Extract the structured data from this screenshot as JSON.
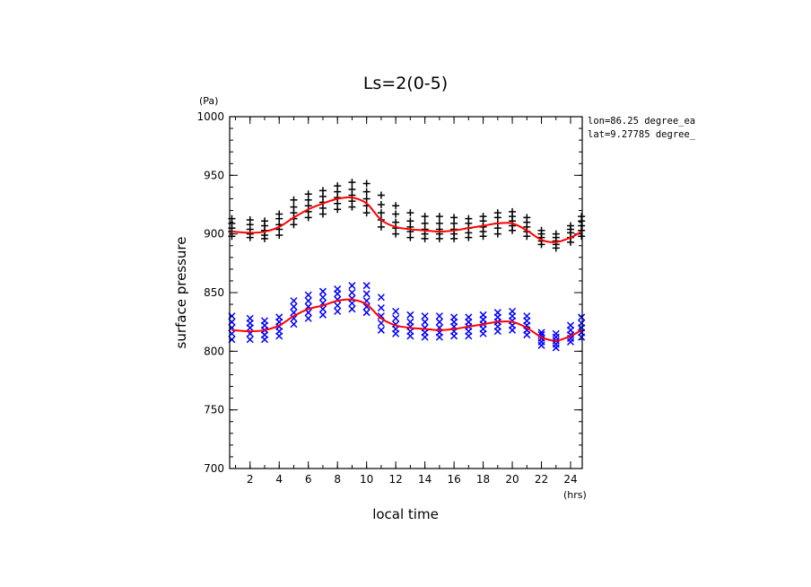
{
  "chart_data": {
    "type": "scatter",
    "title": "Ls=2(0-5)",
    "xlabel": "local time",
    "ylabel": "surface pressure",
    "x_unit": "(hrs)",
    "y_unit": "(Pa)",
    "xlim": [
      0.6,
      24.8
    ],
    "ylim": [
      700,
      1000
    ],
    "xticks": [
      2,
      4,
      6,
      8,
      10,
      12,
      14,
      16,
      18,
      20,
      22,
      24
    ],
    "yticks": [
      700,
      750,
      800,
      850,
      900,
      950,
      1000
    ],
    "annotations": [
      "lon=86.25 degree_ea",
      "lat=9.27785 degree_"
    ],
    "grid": false,
    "x": [
      0.75,
      2,
      3,
      4,
      5,
      6,
      7,
      8,
      9,
      10,
      11,
      12,
      13,
      14,
      15,
      16,
      17,
      18,
      19,
      20,
      21,
      22,
      23,
      24,
      24.75
    ],
    "series": [
      {
        "marker": "+",
        "color": "#000000",
        "values": [
          [
            898,
            902,
            905,
            909,
            913
          ],
          [
            897,
            900,
            904,
            908,
            912
          ],
          [
            896,
            899,
            903,
            907,
            911
          ],
          [
            899,
            904,
            908,
            913,
            917
          ],
          [
            908,
            913,
            918,
            923,
            929
          ],
          [
            914,
            919,
            924,
            929,
            934
          ],
          [
            917,
            922,
            927,
            932,
            937
          ],
          [
            921,
            926,
            931,
            936,
            941
          ],
          [
            923,
            928,
            933,
            938,
            944
          ],
          [
            918,
            924,
            930,
            936,
            943
          ],
          [
            906,
            912,
            918,
            925,
            933
          ],
          [
            900,
            905,
            910,
            917,
            924
          ],
          [
            897,
            902,
            906,
            911,
            918
          ],
          [
            896,
            900,
            904,
            909,
            915
          ],
          [
            896,
            900,
            904,
            909,
            915
          ],
          [
            896,
            900,
            904,
            909,
            914
          ],
          [
            897,
            901,
            905,
            909,
            913
          ],
          [
            898,
            902,
            906,
            911,
            915
          ],
          [
            900,
            905,
            909,
            914,
            918
          ],
          [
            903,
            907,
            911,
            915,
            919
          ],
          [
            898,
            902,
            906,
            910,
            914
          ],
          [
            891,
            894,
            897,
            900,
            903
          ],
          [
            888,
            891,
            894,
            897,
            900
          ],
          [
            893,
            897,
            901,
            904,
            907
          ],
          [
            898,
            903,
            907,
            911,
            915
          ]
        ],
        "fit": [
          902,
          901,
          902,
          906,
          914,
          921,
          926,
          930,
          931,
          926,
          912,
          906,
          904,
          903,
          902,
          903,
          905,
          907,
          909,
          909,
          903,
          895,
          893,
          897,
          902
        ]
      },
      {
        "marker": "x",
        "color": "#0000ff",
        "values": [
          [
            810,
            815,
            820,
            825,
            830
          ],
          [
            810,
            815,
            820,
            824,
            828
          ],
          [
            810,
            814,
            818,
            822,
            826
          ],
          [
            813,
            817,
            821,
            825,
            829
          ],
          [
            823,
            828,
            833,
            838,
            843
          ],
          [
            828,
            833,
            838,
            843,
            848
          ],
          [
            831,
            836,
            841,
            846,
            851
          ],
          [
            834,
            839,
            844,
            849,
            853
          ],
          [
            836,
            841,
            845,
            850,
            856
          ],
          [
            833,
            838,
            843,
            849,
            856
          ],
          [
            818,
            824,
            830,
            837,
            846
          ],
          [
            815,
            819,
            823,
            828,
            834
          ],
          [
            813,
            817,
            821,
            825,
            831
          ],
          [
            812,
            816,
            820,
            825,
            830
          ],
          [
            812,
            816,
            820,
            825,
            830
          ],
          [
            813,
            817,
            821,
            825,
            829
          ],
          [
            813,
            817,
            821,
            825,
            829
          ],
          [
            815,
            819,
            823,
            827,
            831
          ],
          [
            817,
            821,
            825,
            829,
            833
          ],
          [
            818,
            822,
            826,
            830,
            834
          ],
          [
            814,
            818,
            822,
            826,
            830
          ],
          [
            805,
            808,
            811,
            814,
            816
          ],
          [
            803,
            806,
            809,
            812,
            815
          ],
          [
            808,
            811,
            814,
            818,
            822
          ],
          [
            812,
            816,
            820,
            824,
            829
          ]
        ],
        "fit": [
          818,
          817,
          818,
          822,
          830,
          836,
          839,
          843,
          844,
          840,
          828,
          822,
          820,
          819,
          818,
          819,
          821,
          823,
          825,
          825,
          820,
          812,
          809,
          813,
          818
        ]
      }
    ],
    "fit_color": "#ff0000"
  }
}
